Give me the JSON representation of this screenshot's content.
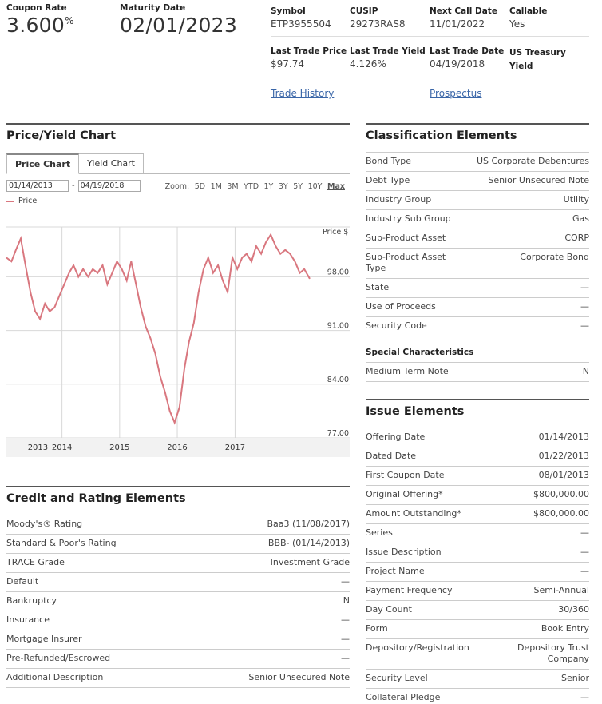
{
  "header": {
    "coupon_rate_label": "Coupon Rate",
    "coupon_rate_value": "3.600",
    "coupon_rate_unit": "%",
    "maturity_label": "Maturity Date",
    "maturity_value": "02/01/2023",
    "fields": [
      {
        "label": "Symbol",
        "value": "ETP3955504"
      },
      {
        "label": "CUSIP",
        "value": "29273RAS8"
      },
      {
        "label": "Next Call Date",
        "value": "11/01/2022"
      },
      {
        "label": "Callable",
        "value": "Yes"
      },
      {
        "label": "Last Trade Price",
        "value": "$97.74"
      },
      {
        "label": "Last Trade Yield",
        "value": "4.126%"
      },
      {
        "label": "Last Trade Date",
        "value": "04/19/2018"
      },
      {
        "label": "US Treasury Yield",
        "value": "—"
      }
    ],
    "trade_history_link": "Trade History",
    "prospectus_link": "Prospectus"
  },
  "price_yield": {
    "title": "Price/Yield Chart",
    "tabs": [
      "Price Chart",
      "Yield Chart"
    ],
    "start_date": "01/14/2013",
    "end_date": "04/19/2018",
    "date_sep": "-",
    "zoom_label": "Zoom:",
    "zoom_options": [
      "5D",
      "1M",
      "3M",
      "YTD",
      "1Y",
      "3Y",
      "5Y",
      "10Y"
    ],
    "zoom_max": "Max",
    "legend_label": "Price",
    "axis_label": "Price $",
    "line_color": "#d9777f"
  },
  "chart_data": {
    "type": "line",
    "series": [
      {
        "name": "Price",
        "x": [
          "2013-01-14",
          "2013-02-15",
          "2013-03-15",
          "2013-04-15",
          "2013-05-15",
          "2013-06-15",
          "2013-07-15",
          "2013-08-15",
          "2013-09-15",
          "2013-10-15",
          "2013-11-15",
          "2013-12-15",
          "2014-01-15",
          "2014-02-15",
          "2014-03-15",
          "2014-04-15",
          "2014-05-15",
          "2014-06-15",
          "2014-07-15",
          "2014-08-15",
          "2014-09-15",
          "2014-10-15",
          "2014-11-15",
          "2014-12-15",
          "2015-01-15",
          "2015-02-15",
          "2015-03-15",
          "2015-04-15",
          "2015-05-15",
          "2015-06-15",
          "2015-07-15",
          "2015-08-15",
          "2015-09-15",
          "2015-10-15",
          "2015-11-15",
          "2015-12-15",
          "2016-01-15",
          "2016-02-15",
          "2016-03-15",
          "2016-04-15",
          "2016-05-15",
          "2016-06-15",
          "2016-07-15",
          "2016-08-15",
          "2016-09-15",
          "2016-10-15",
          "2016-11-15",
          "2016-12-15",
          "2017-01-15",
          "2017-02-15",
          "2017-03-15",
          "2017-04-15",
          "2017-05-15",
          "2017-06-15",
          "2017-07-15",
          "2017-08-15",
          "2017-09-15",
          "2017-10-15",
          "2017-11-15",
          "2017-12-15",
          "2018-01-15",
          "2018-02-15",
          "2018-03-15",
          "2018-04-19"
        ],
        "y": [
          100.5,
          100.0,
          101.5,
          103.0,
          99.5,
          96.0,
          93.5,
          92.5,
          94.5,
          93.5,
          94.0,
          95.5,
          97.0,
          98.5,
          99.5,
          98.0,
          99.0,
          98.0,
          99.0,
          98.5,
          99.5,
          97.0,
          98.5,
          100.0,
          99.0,
          97.5,
          100.0,
          97.0,
          94.0,
          91.5,
          90.0,
          88.0,
          85.0,
          83.0,
          80.5,
          79.0,
          81.0,
          86.0,
          89.5,
          92.0,
          96.0,
          99.0,
          100.5,
          98.5,
          99.5,
          97.5,
          96.0,
          100.5,
          99.0,
          100.5,
          101.0,
          100.0,
          102.0,
          101.0,
          102.5,
          103.5,
          102.0,
          101.0,
          101.5,
          101.0,
          100.0,
          98.5,
          99.0,
          97.74
        ]
      }
    ],
    "xlabel": "",
    "ylabel": "Price $",
    "x_ticks": [
      "2013",
      "2014",
      "2015",
      "2016",
      "2017"
    ],
    "y_ticks": [
      77.0,
      84.0,
      91.0,
      98.0
    ],
    "ylim": [
      77,
      104.5
    ],
    "xlim": [
      "2013-01-14",
      "2018-04-19"
    ],
    "grid": true
  },
  "classification": {
    "title": "Classification Elements",
    "rows": [
      [
        "Bond Type",
        "US Corporate Debentures"
      ],
      [
        "Debt Type",
        "Senior Unsecured Note"
      ],
      [
        "Industry Group",
        "Utility"
      ],
      [
        "Industry Sub Group",
        "Gas"
      ],
      [
        "Sub-Product Asset",
        "CORP"
      ],
      [
        "Sub-Product Asset Type",
        "Corporate Bond"
      ],
      [
        "State",
        "—"
      ],
      [
        "Use of Proceeds",
        "—"
      ],
      [
        "Security Code",
        "—"
      ]
    ],
    "special_title": "Special Characteristics",
    "special_rows": [
      [
        "Medium Term Note",
        "N"
      ]
    ]
  },
  "issue": {
    "title": "Issue Elements",
    "rows": [
      [
        "Offering Date",
        "01/14/2013"
      ],
      [
        "Dated Date",
        "01/22/2013"
      ],
      [
        "First Coupon Date",
        "08/01/2013"
      ],
      [
        "Original Offering*",
        "$800,000.00"
      ],
      [
        "Amount Outstanding*",
        "$800,000.00"
      ],
      [
        "Series",
        "—"
      ],
      [
        "Issue Description",
        "—"
      ],
      [
        "Project Name",
        "—"
      ],
      [
        "Payment Frequency",
        "Semi-Annual"
      ],
      [
        "Day Count",
        "30/360"
      ],
      [
        "Form",
        "Book Entry"
      ],
      [
        "Depository/Registration",
        "Depository Trust Company"
      ],
      [
        "Security Level",
        "Senior"
      ],
      [
        "Collateral Pledge",
        "—"
      ]
    ]
  },
  "credit": {
    "title": "Credit and Rating Elements",
    "rows": [
      [
        "Moody's® Rating",
        "Baa3 (11/08/2017)"
      ],
      [
        "Standard & Poor's Rating",
        "BBB- (01/14/2013)"
      ],
      [
        "TRACE Grade",
        "Investment Grade"
      ],
      [
        "Default",
        "—"
      ],
      [
        "Bankruptcy",
        "N"
      ],
      [
        "Insurance",
        "—"
      ],
      [
        "Mortgage Insurer",
        "—"
      ],
      [
        "Pre-Refunded/Escrowed",
        "—"
      ],
      [
        "Additional Description",
        "Senior Unsecured Note"
      ]
    ]
  }
}
